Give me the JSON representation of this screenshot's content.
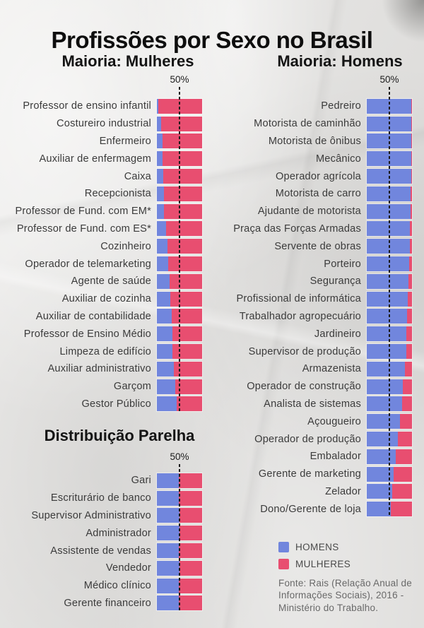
{
  "page": {
    "title": "Profissões por Sexo no Brasil"
  },
  "axis": {
    "tick_label": "50%"
  },
  "legend": {
    "items": [
      {
        "label": "HOMENS",
        "color": "#7186DD"
      },
      {
        "label": "MULHERES",
        "color": "#E84E70"
      }
    ]
  },
  "source": {
    "text": "Fonte: Rais (Relação Anual de Informações Sociais), 2016 - Ministério do Trabalho."
  },
  "chart_data": {
    "type": "bar",
    "orientation": "horizontal",
    "stacked": true,
    "unit": "percent",
    "xlim": [
      0,
      100
    ],
    "reference_line_pct": 50,
    "series_names": [
      "HOMENS",
      "MULHERES"
    ],
    "colors": {
      "HOMENS": "#7186DD",
      "MULHERES": "#E84E70"
    },
    "sections": [
      {
        "id": "maioria-mulheres",
        "title": "Maioria: Mulheres",
        "rows": [
          {
            "label": "Professor de ensino infantil",
            "homens": 3,
            "mulheres": 97
          },
          {
            "label": "Costureiro industrial",
            "homens": 10,
            "mulheres": 90
          },
          {
            "label": "Enfermeiro",
            "homens": 12,
            "mulheres": 88
          },
          {
            "label": "Auxiliar de enfermagem",
            "homens": 13,
            "mulheres": 87
          },
          {
            "label": "Caixa",
            "homens": 14,
            "mulheres": 86
          },
          {
            "label": "Recepcionista",
            "homens": 15,
            "mulheres": 85
          },
          {
            "label": "Professor de Fund. com EM*",
            "homens": 16,
            "mulheres": 84
          },
          {
            "label": "Professor de Fund. com ES*",
            "homens": 21,
            "mulheres": 79
          },
          {
            "label": "Cozinheiro",
            "homens": 24,
            "mulheres": 76
          },
          {
            "label": "Operador de telemarketing",
            "homens": 25,
            "mulheres": 75
          },
          {
            "label": "Agente de saúde",
            "homens": 28,
            "mulheres": 72
          },
          {
            "label": "Auxiliar de cozinha",
            "homens": 30,
            "mulheres": 70
          },
          {
            "label": "Auxiliar de contabilidade",
            "homens": 33,
            "mulheres": 67
          },
          {
            "label": "Professor de Ensino Médio",
            "homens": 35,
            "mulheres": 65
          },
          {
            "label": "Limpeza de edifício",
            "homens": 35,
            "mulheres": 65
          },
          {
            "label": "Auxiliar administrativo",
            "homens": 37,
            "mulheres": 63
          },
          {
            "label": "Garçom",
            "homens": 41,
            "mulheres": 59
          },
          {
            "label": "Gestor Público",
            "homens": 43,
            "mulheres": 57
          }
        ]
      },
      {
        "id": "maioria-homens",
        "title": "Maioria: Homens",
        "rows": [
          {
            "label": "Pedreiro",
            "homens": 99,
            "mulheres": 1
          },
          {
            "label": "Motorista de caminhão",
            "homens": 99,
            "mulheres": 1
          },
          {
            "label": "Motorista de ônibus",
            "homens": 99,
            "mulheres": 1
          },
          {
            "label": "Mecânico",
            "homens": 98,
            "mulheres": 2
          },
          {
            "label": "Operador agrícola",
            "homens": 98,
            "mulheres": 2
          },
          {
            "label": "Motorista de carro",
            "homens": 97,
            "mulheres": 3
          },
          {
            "label": "Ajudante de motorista",
            "homens": 97,
            "mulheres": 3
          },
          {
            "label": "Praça das Forças Armadas",
            "homens": 96,
            "mulheres": 4
          },
          {
            "label": "Servente de obras",
            "homens": 95,
            "mulheres": 5
          },
          {
            "label": "Porteiro",
            "homens": 94,
            "mulheres": 6
          },
          {
            "label": "Segurança",
            "homens": 92,
            "mulheres": 8
          },
          {
            "label": "Profissional de informática",
            "homens": 90,
            "mulheres": 10
          },
          {
            "label": "Trabalhador agropecuário",
            "homens": 89,
            "mulheres": 11
          },
          {
            "label": "Jardineiro",
            "homens": 88,
            "mulheres": 12
          },
          {
            "label": "Supervisor de produção",
            "homens": 87,
            "mulheres": 13
          },
          {
            "label": "Armazenista",
            "homens": 85,
            "mulheres": 15
          },
          {
            "label": "Operador de construção",
            "homens": 80,
            "mulheres": 20
          },
          {
            "label": "Analista de sistemas",
            "homens": 78,
            "mulheres": 22
          },
          {
            "label": "Açougueiro",
            "homens": 73,
            "mulheres": 27
          },
          {
            "label": "Operador de produção",
            "homens": 68,
            "mulheres": 32
          },
          {
            "label": "Embalador",
            "homens": 64,
            "mulheres": 36
          },
          {
            "label": "Gerente de marketing",
            "homens": 60,
            "mulheres": 40
          },
          {
            "label": "Zelador",
            "homens": 56,
            "mulheres": 44
          },
          {
            "label": "Dono/Gerente de loja",
            "homens": 53,
            "mulheres": 47
          }
        ]
      },
      {
        "id": "distribuicao-parelha",
        "title": "Distribuição Parelha",
        "rows": [
          {
            "label": "Gari",
            "homens": 49,
            "mulheres": 51
          },
          {
            "label": "Escriturário de banco",
            "homens": 49,
            "mulheres": 51
          },
          {
            "label": "Supervisor Administrativo",
            "homens": 50,
            "mulheres": 50
          },
          {
            "label": "Administrador",
            "homens": 50,
            "mulheres": 50
          },
          {
            "label": "Assistente de vendas",
            "homens": 49,
            "mulheres": 51
          },
          {
            "label": "Vendedor",
            "homens": 50,
            "mulheres": 50
          },
          {
            "label": "Médico clínico",
            "homens": 49,
            "mulheres": 51
          },
          {
            "label": "Gerente financeiro",
            "homens": 49,
            "mulheres": 51
          }
        ]
      }
    ]
  }
}
